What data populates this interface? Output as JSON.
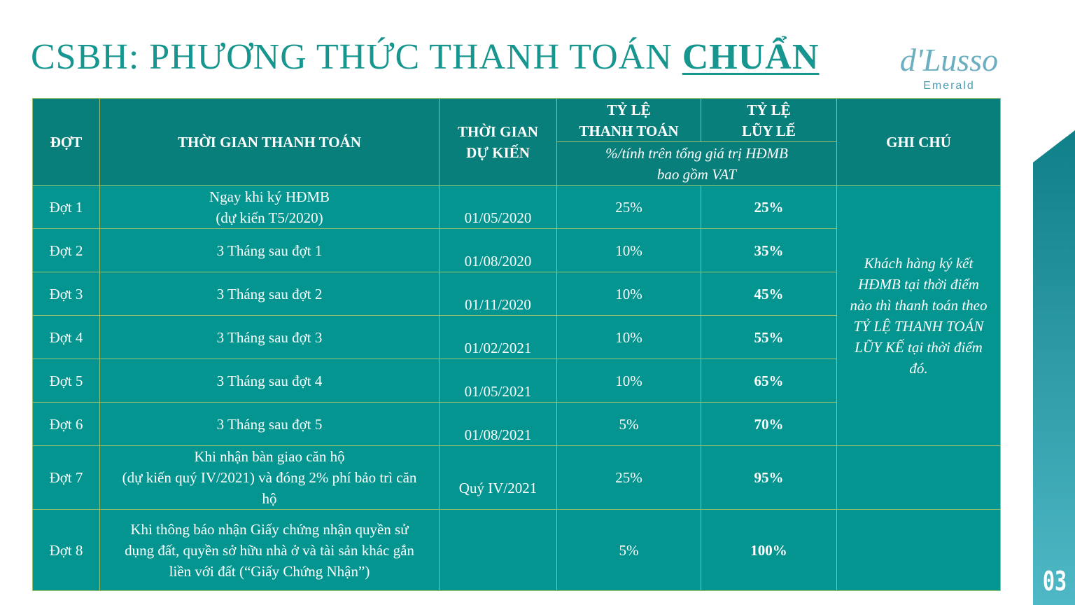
{
  "title": {
    "prefix": "CSBH: PHƯƠNG THỨC THANH TOÁN ",
    "highlight": "CHUẨN"
  },
  "logo": {
    "brand": "d'Lusso",
    "sub": "Emerald"
  },
  "page_number": "03",
  "table": {
    "headers": {
      "dot": "ĐỢT",
      "thoi_gian_thanh_toan": "THỜI GIAN THANH TOÁN",
      "thoi_gian_du_kien_1": "THỜI GIAN",
      "thoi_gian_du_kien_2": "DỰ KIẾN",
      "ty_le_tt_1": "TỶ LỆ",
      "ty_le_tt_2": "THANH TOÁN",
      "ty_le_lk_1": "TỶ LỆ",
      "ty_le_lk_2": "LŨY LẾ",
      "ghi_chu": "GHI CHÚ",
      "unit_1": "%/tính trên tổng giá trị HĐMB",
      "unit_2": "bao gồm VAT"
    },
    "rows": [
      {
        "dot": "Đợt 1",
        "time": [
          "Ngay khi ký HĐMB",
          "(dự kiến T5/2020)"
        ],
        "expected": "01/05/2020",
        "rate": "25%",
        "cumulative": "25%"
      },
      {
        "dot": "Đợt 2",
        "time": [
          "3 Tháng sau đợt 1"
        ],
        "expected": "01/08/2020",
        "rate": "10%",
        "cumulative": "35%"
      },
      {
        "dot": "Đợt 3",
        "time": [
          "3 Tháng sau đợt 2"
        ],
        "expected": "01/11/2020",
        "rate": "10%",
        "cumulative": "45%"
      },
      {
        "dot": "Đợt 4",
        "time": [
          "3 Tháng sau đợt 3"
        ],
        "expected": "01/02/2021",
        "rate": "10%",
        "cumulative": "55%"
      },
      {
        "dot": "Đợt 5",
        "time": [
          "3 Tháng sau đợt 4"
        ],
        "expected": "01/05/2021",
        "rate": "10%",
        "cumulative": "65%"
      },
      {
        "dot": "Đợt 6",
        "time": [
          "3 Tháng sau đợt 5"
        ],
        "expected": "01/08/2021",
        "rate": "5%",
        "cumulative": "70%"
      },
      {
        "dot": "Đợt 7",
        "time": [
          "Khi nhận bàn giao căn hộ",
          "(dự kiến quý IV/2021) và đóng 2% phí bảo trì căn",
          "hộ"
        ],
        "expected": "Quý IV/2021",
        "rate": "25%",
        "cumulative": "95%"
      },
      {
        "dot": "Đợt 8",
        "time": [
          "Khi thông báo nhận Giấy chứng nhận quyền sử",
          "dụng đất, quyền sở hữu nhà ở và tài sản khác gắn",
          "liền với đất (“Giấy Chứng Nhận”)"
        ],
        "expected": "",
        "rate": "5%",
        "cumulative": "100%"
      }
    ],
    "note": [
      "Khách hàng ký kết",
      "HĐMB tại thời điểm",
      "nào thì thanh toán theo",
      "TỶ LỆ THANH TOÁN",
      "LŨY KẾ tại thời điểm",
      "đó."
    ]
  },
  "colors": {
    "title": "#16968f",
    "header_bg": "#097f7b",
    "cell_bg": "#059590",
    "border": "#9bbf6e",
    "logo": "#6aaec0"
  }
}
